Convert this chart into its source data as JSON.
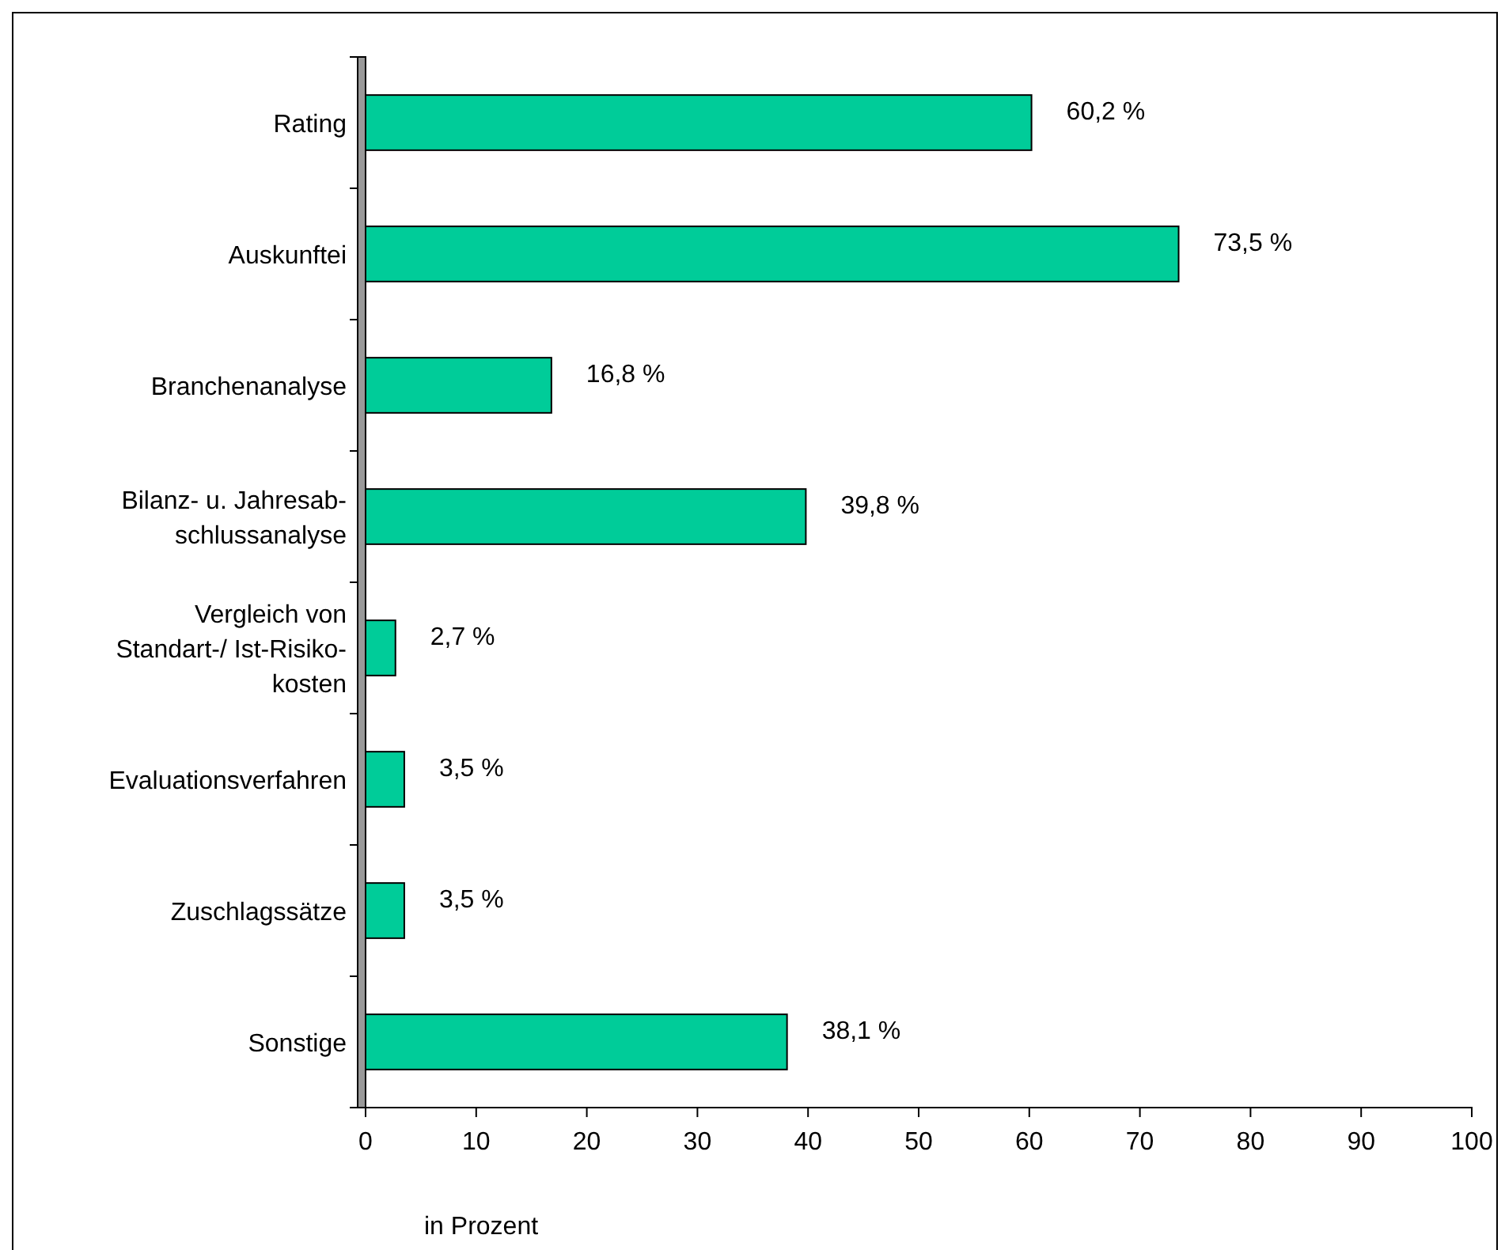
{
  "chart_data": {
    "type": "bar",
    "orientation": "horizontal",
    "xlabel": "in Prozent",
    "categories": [
      "Rating",
      "Auskunftei",
      "Branchenanalyse",
      "Bilanz- u. Jahresab-\nschlussanalyse",
      "Vergleich von\nStandart-/ Ist-Risiko-\nkosten",
      "Evaluationsverfahren",
      "Zuschlagssätze",
      "Sonstige"
    ],
    "values": [
      60.2,
      73.5,
      16.8,
      39.8,
      2.7,
      3.5,
      3.5,
      38.1
    ],
    "value_labels": [
      "60,2 %",
      "73,5 %",
      "16,8 %",
      "39,8 %",
      "2,7 %",
      "3,5 %",
      "3,5 %",
      "38,1 %"
    ],
    "color": "#00cc99",
    "xlim": [
      0,
      100
    ],
    "xticks": [
      0,
      10,
      20,
      30,
      40,
      50,
      60,
      70,
      80,
      90,
      100
    ],
    "grid": false
  }
}
